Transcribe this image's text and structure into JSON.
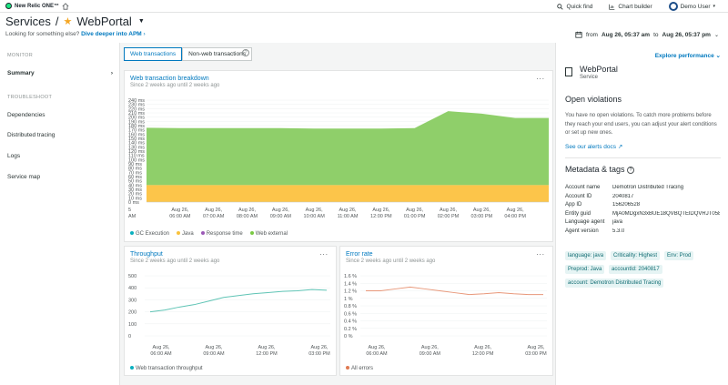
{
  "topbar": {
    "logo_text": "New Relic ONE™",
    "quick_find": "Quick find",
    "chart_builder": "Chart builder",
    "user": "Demo User"
  },
  "header": {
    "breadcrumb_root": "Services",
    "separator": "/",
    "app_name": "WebPortal",
    "prompt": "Looking for something else?",
    "prompt_link": "Dive deeper into APM",
    "time_from_label": "from",
    "time_from": "Aug 26, 05:37 am",
    "time_to_label": "to",
    "time_to": "Aug 26, 05:37 pm"
  },
  "sidebar": {
    "monitor_title": "MONITOR",
    "summary": "Summary",
    "troubleshoot_title": "TROUBLESHOOT",
    "items": [
      "Dependencies",
      "Distributed tracing",
      "Logs",
      "Service map"
    ]
  },
  "tabs": [
    "Web transactions",
    "Non-web transactions"
  ],
  "breakdown": {
    "title": "Web transaction breakdown",
    "subtitle": "Since 2 weeks ago until 2 weeks ago",
    "menu": "...",
    "y_ticks": [
      "240 ms",
      "230 ms",
      "220 ms",
      "210 ms",
      "200 ms",
      "190 ms",
      "180 ms",
      "170 ms",
      "160 ms",
      "150 ms",
      "140 ms",
      "130 ms",
      "120 ms",
      "110 ms",
      "100 ms",
      "90 ms",
      "80 ms",
      "70 ms",
      "60 ms",
      "50 ms",
      "40 ms",
      "30 ms",
      "20 ms",
      "10 ms",
      "0 ms"
    ],
    "x_ticks": [
      [
        "Aug 26,",
        "06:00 AM"
      ],
      [
        "Aug 26,",
        "07:00 AM"
      ],
      [
        "Aug 26,",
        "08:00 AM"
      ],
      [
        "Aug 26,",
        "09:00 AM"
      ],
      [
        "Aug 26,",
        "10:00 AM"
      ],
      [
        "Aug 26,",
        "11:00 AM"
      ],
      [
        "Aug 26,",
        "12:00 PM"
      ],
      [
        "Aug 26,",
        "01:00 PM"
      ],
      [
        "Aug 26,",
        "02:00 PM"
      ],
      [
        "Aug 26,",
        "03:00 PM"
      ],
      [
        "Aug 26,",
        "04:00 PM"
      ]
    ],
    "x_edge": [
      "5",
      "AM"
    ],
    "legend": [
      {
        "name": "GC Execution",
        "color": "#0ab0bf"
      },
      {
        "name": "Java",
        "color": "#f9c23c"
      },
      {
        "name": "Response time",
        "color": "#9b59b6"
      },
      {
        "name": "Web external",
        "color": "#7ac943"
      }
    ]
  },
  "throughput": {
    "title": "Throughput",
    "subtitle": "Since 2 weeks ago until 2 weeks ago",
    "menu": "...",
    "y_ticks": [
      "500",
      "400",
      "300",
      "200",
      "100",
      "0"
    ],
    "x_ticks": [
      [
        "Aug 26,",
        "06:00 AM"
      ],
      [
        "Aug 26,",
        "09:00 AM"
      ],
      [
        "Aug 26,",
        "12:00 PM"
      ],
      [
        "Aug 26,",
        "03:00 PM"
      ]
    ],
    "legend": [
      {
        "name": "Web transaction throughput",
        "color": "#0ab0bf"
      }
    ]
  },
  "errors": {
    "title": "Error rate",
    "subtitle": "Since 2 weeks ago until 2 weeks ago",
    "menu": "...",
    "y_ticks": [
      "1.6 %",
      "1.4 %",
      "1.2 %",
      "1 %",
      "0.8 %",
      "0.6 %",
      "0.4 %",
      "0.2 %",
      "0 %"
    ],
    "x_ticks": [
      [
        "Aug 26,",
        "06:00 AM"
      ],
      [
        "Aug 26,",
        "09:00 AM"
      ],
      [
        "Aug 26,",
        "12:00 PM"
      ],
      [
        "Aug 26,",
        "03:00 PM"
      ]
    ],
    "legend": [
      {
        "name": "All errors",
        "color": "#e07a52"
      }
    ]
  },
  "right_panel": {
    "explore": "Explore performance",
    "service_name": "WebPortal",
    "service_type": "Service",
    "violations_title": "Open violations",
    "violations_text": "You have no open violations. To catch more problems before they reach your end users, you can adjust your alert conditions or set up new ones.",
    "alerts_link": "See our alerts docs",
    "meta_title": "Metadata & tags",
    "metadata": [
      {
        "key": "Account name",
        "value": "Demotron Distributed Tracing"
      },
      {
        "key": "Account ID",
        "value": "2040817"
      },
      {
        "key": "App ID",
        "value": "156206528"
      },
      {
        "key": "Entity guid",
        "value": "MjA0MDgxN3xBUE18QVBQTElDQVRJT058..."
      },
      {
        "key": "Language agent",
        "value": "java"
      },
      {
        "key": "Agent version",
        "value": "5.3.0"
      }
    ],
    "tags": [
      "language: java",
      "Criticality: Highest",
      "Env: Prod",
      "Preprod: Java",
      "accountId: 2040817",
      "account: Demotron Distributed Tracing"
    ]
  },
  "chart_data": [
    {
      "type": "area",
      "title": "Web transaction breakdown",
      "x": [
        "05:37 AM",
        "06:00 AM",
        "07:00 AM",
        "08:00 AM",
        "09:00 AM",
        "10:00 AM",
        "11:00 AM",
        "12:00 PM",
        "01:00 PM",
        "02:00 PM",
        "03:00 PM",
        "04:00 PM",
        "05:00 PM"
      ],
      "series": [
        {
          "name": "Java",
          "values": [
            40,
            40,
            40,
            40,
            40,
            40,
            40,
            40,
            40,
            40,
            40,
            40,
            40
          ]
        },
        {
          "name": "Web external",
          "values": [
            135,
            134,
            134,
            134,
            134,
            133,
            133,
            133,
            134,
            174,
            168,
            158,
            158
          ]
        }
      ],
      "ylim": [
        0,
        240
      ]
    },
    {
      "type": "line",
      "title": "Throughput",
      "x": [
        "05:37 AM",
        "06:00 AM",
        "07:00 AM",
        "08:00 AM",
        "09:00 AM",
        "10:00 AM",
        "11:00 AM",
        "12:00 PM",
        "01:00 PM",
        "02:00 PM",
        "03:00 PM",
        "04:00 PM",
        "05:00 PM"
      ],
      "series": [
        {
          "name": "Web transaction throughput",
          "values": [
            200,
            215,
            240,
            260,
            290,
            320,
            335,
            350,
            360,
            370,
            375,
            385,
            380
          ]
        }
      ],
      "ylim": [
        0,
        500
      ]
    },
    {
      "type": "line",
      "title": "Error rate",
      "x": [
        "05:37 AM",
        "06:00 AM",
        "07:00 AM",
        "08:00 AM",
        "09:00 AM",
        "10:00 AM",
        "11:00 AM",
        "12:00 PM",
        "01:00 PM",
        "02:00 PM",
        "03:00 PM",
        "04:00 PM",
        "05:00 PM"
      ],
      "series": [
        {
          "name": "All errors",
          "values": [
            1.2,
            1.2,
            1.25,
            1.3,
            1.25,
            1.2,
            1.15,
            1.1,
            1.12,
            1.15,
            1.12,
            1.1,
            1.1
          ]
        }
      ],
      "ylim": [
        0,
        1.6
      ]
    }
  ]
}
